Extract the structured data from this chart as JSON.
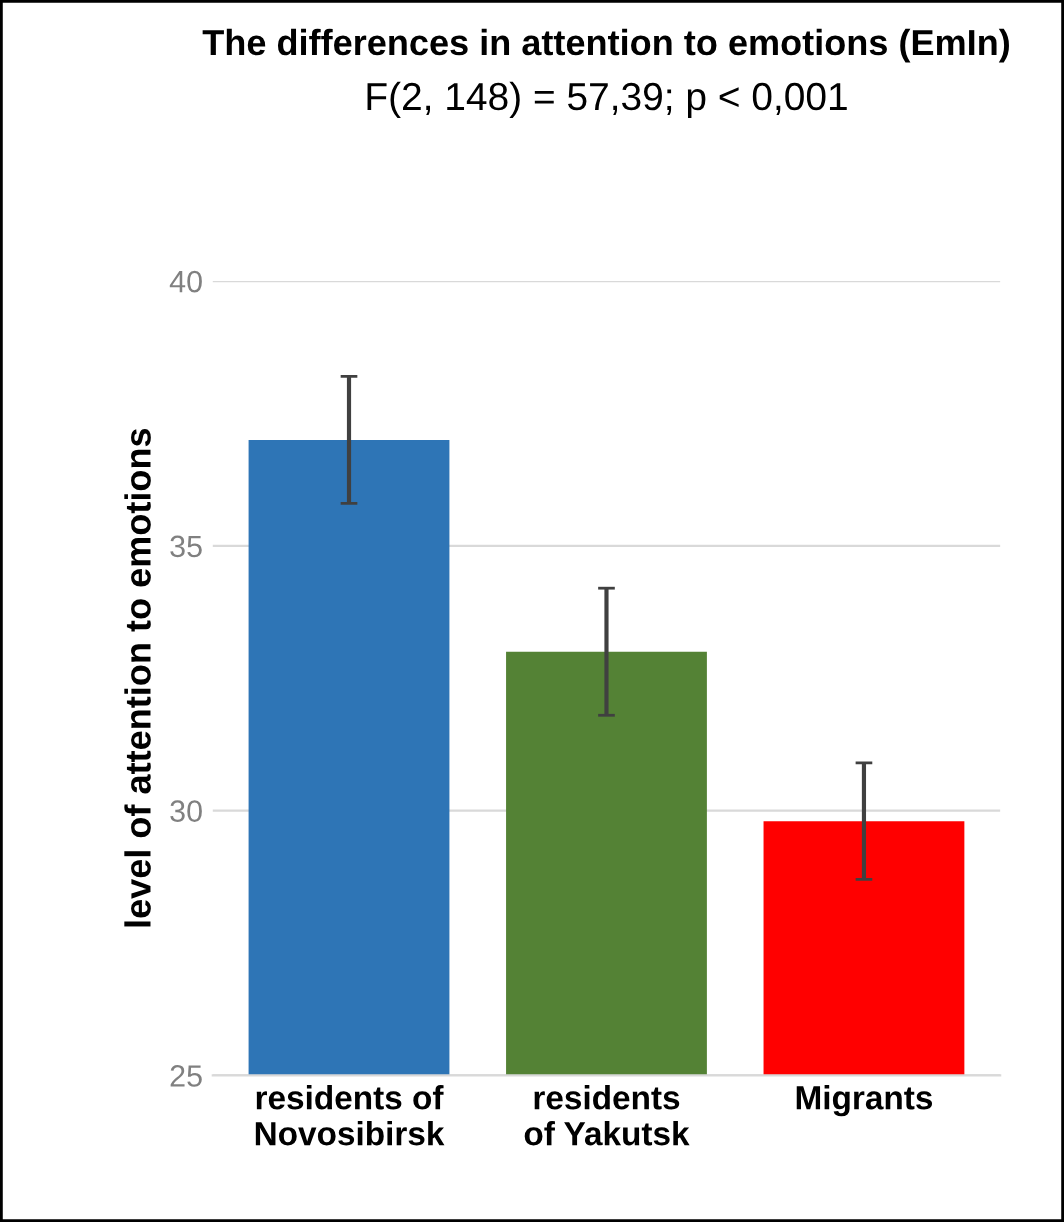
{
  "chart_data": {
    "type": "bar",
    "title": "The differences in attention to emotions (EmIn)",
    "subtitle": "F(2, 148) = 57,39; p < 0,001",
    "ylabel": "level of attention to emotions",
    "categories": [
      "residents of\nNovosibirsk",
      "residents\nof Yakutsk",
      "Migrants"
    ],
    "values": [
      37.0,
      33.0,
      29.8
    ],
    "colors": [
      "#2e75b6",
      "#548235",
      "#ff0000"
    ],
    "errors": [
      1.2,
      1.2,
      1.1
    ],
    "ylim": [
      25,
      40
    ],
    "yticks": [
      25,
      30,
      35,
      40
    ],
    "grid": "y"
  }
}
